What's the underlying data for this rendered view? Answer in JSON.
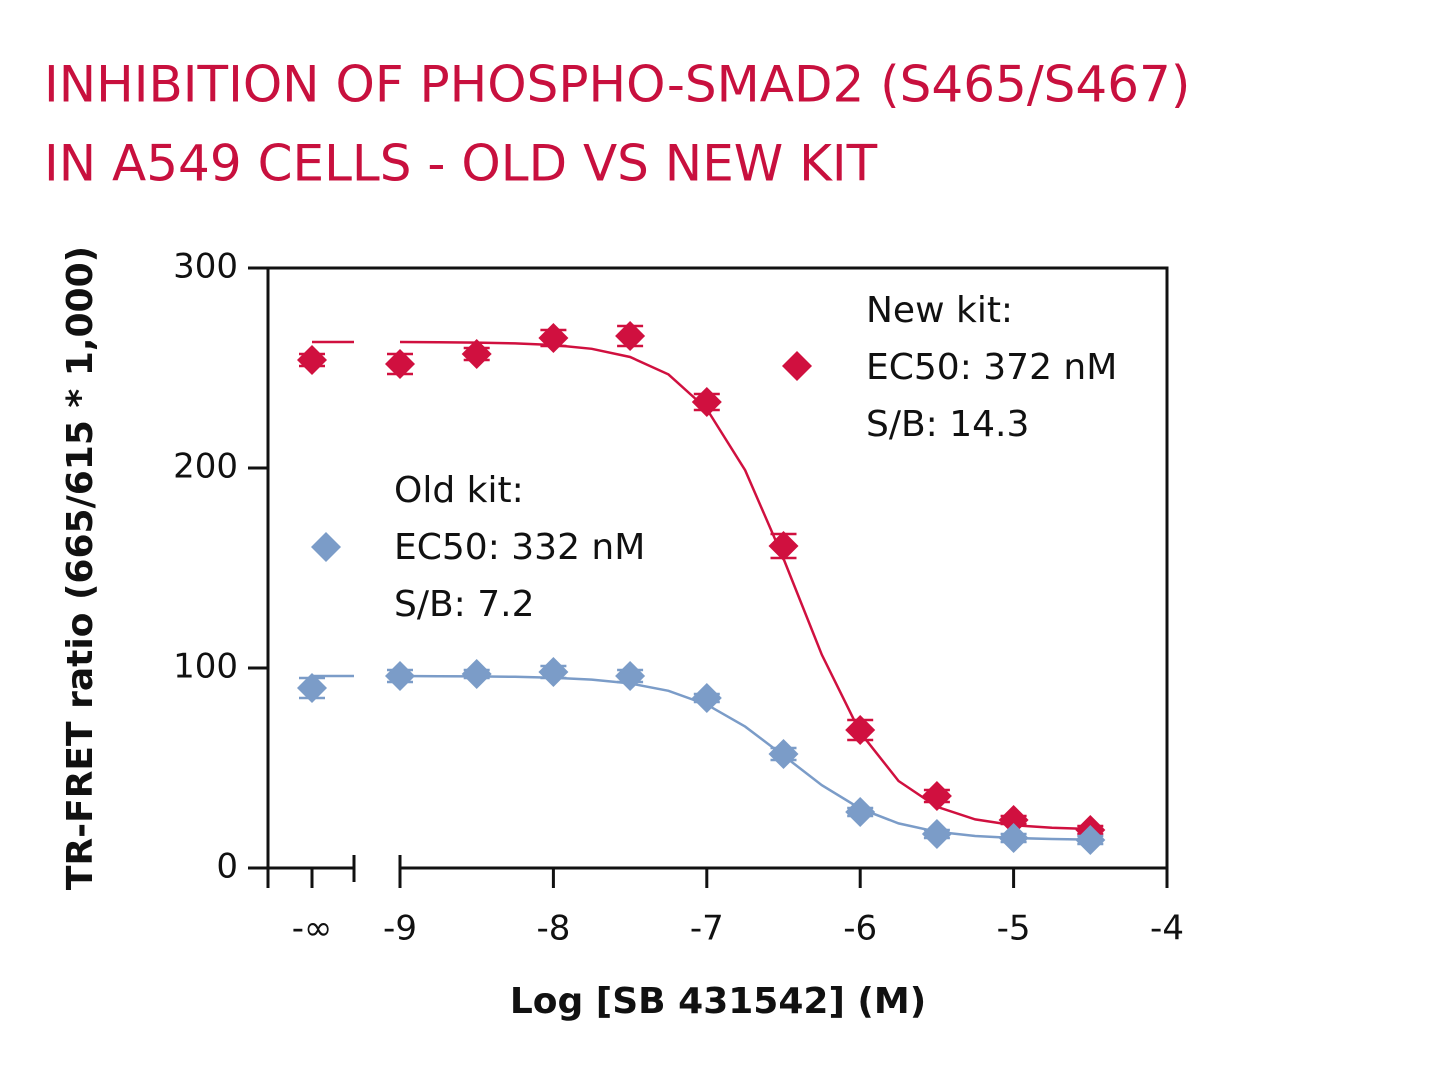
{
  "chart_data": {
    "type": "scatter",
    "title": [
      "INHIBITION OF PHOSPHO-SMAD2 (S465/S467)",
      "IN A549 CELLS - OLD VS NEW KIT"
    ],
    "x_label": "Log [SB 431542] (M)",
    "y_label": "TR-FRET ratio (665/615 * 1,000)",
    "x_control_label": "-∞",
    "x": [
      -9,
      -8.5,
      -8,
      -7.5,
      -7,
      -6.5,
      -6,
      -5.5,
      -5,
      -4.5
    ],
    "xlim": [
      -9,
      -4
    ],
    "xticks": [
      -9,
      -8,
      -7,
      -6,
      -5,
      -4
    ],
    "ylim": [
      0,
      300
    ],
    "yticks": [
      0,
      100,
      200,
      300
    ],
    "fit_x": [
      -9,
      -8.75,
      -8.5,
      -8.25,
      -8,
      -7.75,
      -7.5,
      -7.25,
      -7,
      -6.75,
      -6.5,
      -6.25,
      -6,
      -5.75,
      -5.5,
      -5.25,
      -5,
      -4.75,
      -4.5
    ],
    "series": [
      {
        "name": "New kit:",
        "annotations": [
          "EC50: 372 nM",
          "S/B: 14.3"
        ],
        "color": "#d0103f",
        "control_value": 254,
        "control_error": 3,
        "control_fit": 263,
        "values": [
          252,
          257,
          265,
          266,
          233,
          161,
          69,
          36,
          24,
          19
        ],
        "errors": [
          5,
          3,
          4,
          5,
          4,
          6,
          5,
          3,
          2,
          2
        ],
        "fit_values": [
          263.0,
          262.9,
          262.7,
          262.3,
          261.5,
          259.6,
          255.5,
          246.8,
          229.5,
          198.9,
          154.7,
          106.6,
          67.8,
          43.5,
          30.6,
          24.3,
          21.4,
          20.1,
          19.5
        ]
      },
      {
        "name": "Old kit:",
        "annotations": [
          "EC50: 332 nM",
          "S/B: 7.2"
        ],
        "color": "#7b9cc8",
        "control_value": 90,
        "control_error": 5,
        "control_fit": 96,
        "values": [
          96,
          97,
          98,
          96,
          85,
          57,
          28,
          17,
          15,
          14
        ],
        "errors": [
          3,
          2,
          3,
          3,
          2,
          3,
          2,
          2,
          2,
          2
        ],
        "fit_values": [
          96.0,
          95.9,
          95.8,
          95.6,
          95.1,
          94.2,
          92.3,
          88.6,
          81.7,
          70.7,
          56.2,
          41.4,
          29.7,
          22.3,
          18.1,
          16.0,
          15.0,
          14.5,
          14.2
        ]
      }
    ]
  }
}
